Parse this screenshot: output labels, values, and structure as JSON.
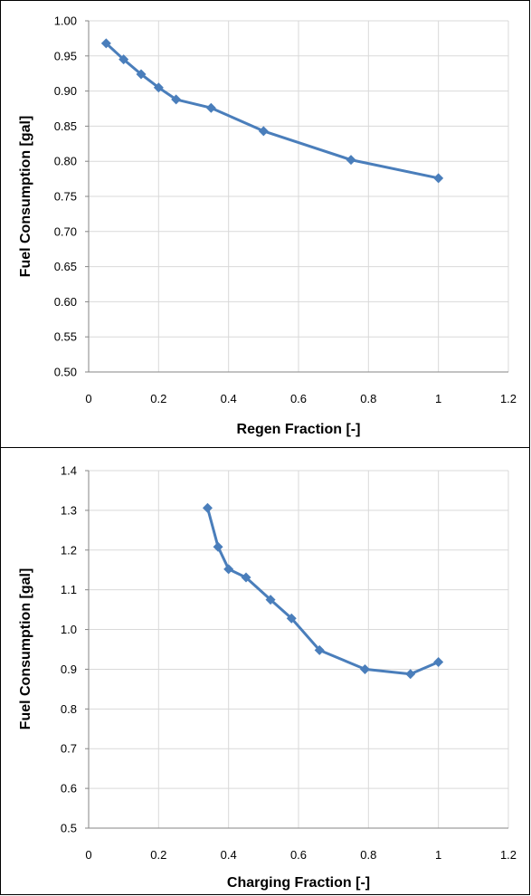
{
  "chart_data": [
    {
      "type": "line",
      "title": "",
      "xlabel": "Regen Fraction [-]",
      "ylabel": "Fuel Consumption [gal]",
      "xlim": [
        0,
        1.2
      ],
      "ylim": [
        0.5,
        1.0
      ],
      "xticks": [
        0,
        0.2,
        0.4,
        0.6,
        0.8,
        1,
        1.2
      ],
      "yticks": [
        0.5,
        0.55,
        0.6,
        0.65,
        0.7,
        0.75,
        0.8,
        0.85,
        0.9,
        0.95,
        1.0
      ],
      "xtick_labels": [
        "0",
        "0.2",
        "0.4",
        "0.6",
        "0.8",
        "1",
        "1.2"
      ],
      "ytick_labels": [
        "0.50",
        "0.55",
        "0.60",
        "0.65",
        "0.70",
        "0.75",
        "0.80",
        "0.85",
        "0.90",
        "0.95",
        "1.00"
      ],
      "grid": true,
      "color": "#4a7ebb",
      "marker": "diamond",
      "series": [
        {
          "x": [
            0.05,
            0.1,
            0.15,
            0.2,
            0.25,
            0.35,
            0.5,
            0.75,
            1.0
          ],
          "y": [
            0.968,
            0.945,
            0.924,
            0.905,
            0.888,
            0.876,
            0.843,
            0.802,
            0.776
          ]
        }
      ]
    },
    {
      "type": "line",
      "title": "",
      "xlabel": "Charging Fraction [-]",
      "ylabel": "Fuel Consumption [gal]",
      "xlim": [
        0,
        1.2
      ],
      "ylim": [
        0.5,
        1.4
      ],
      "xticks": [
        0,
        0.2,
        0.4,
        0.6,
        0.8,
        1,
        1.2
      ],
      "yticks": [
        0.5,
        0.6,
        0.7,
        0.8,
        0.9,
        1.0,
        1.1,
        1.2,
        1.3,
        1.4
      ],
      "xtick_labels": [
        "0",
        "0.2",
        "0.4",
        "0.6",
        "0.8",
        "1",
        "1.2"
      ],
      "ytick_labels": [
        "0.5",
        "0.6",
        "0.7",
        "0.8",
        "0.9",
        "1.0",
        "1.1",
        "1.2",
        "1.3",
        "1.4"
      ],
      "grid": true,
      "color": "#4a7ebb",
      "marker": "diamond",
      "series": [
        {
          "x": [
            0.34,
            0.37,
            0.4,
            0.45,
            0.52,
            0.58,
            0.66,
            0.79,
            0.92,
            1.0
          ],
          "y": [
            1.306,
            1.208,
            1.152,
            1.131,
            1.075,
            1.028,
            0.948,
            0.9,
            0.888,
            0.918
          ]
        }
      ]
    }
  ]
}
